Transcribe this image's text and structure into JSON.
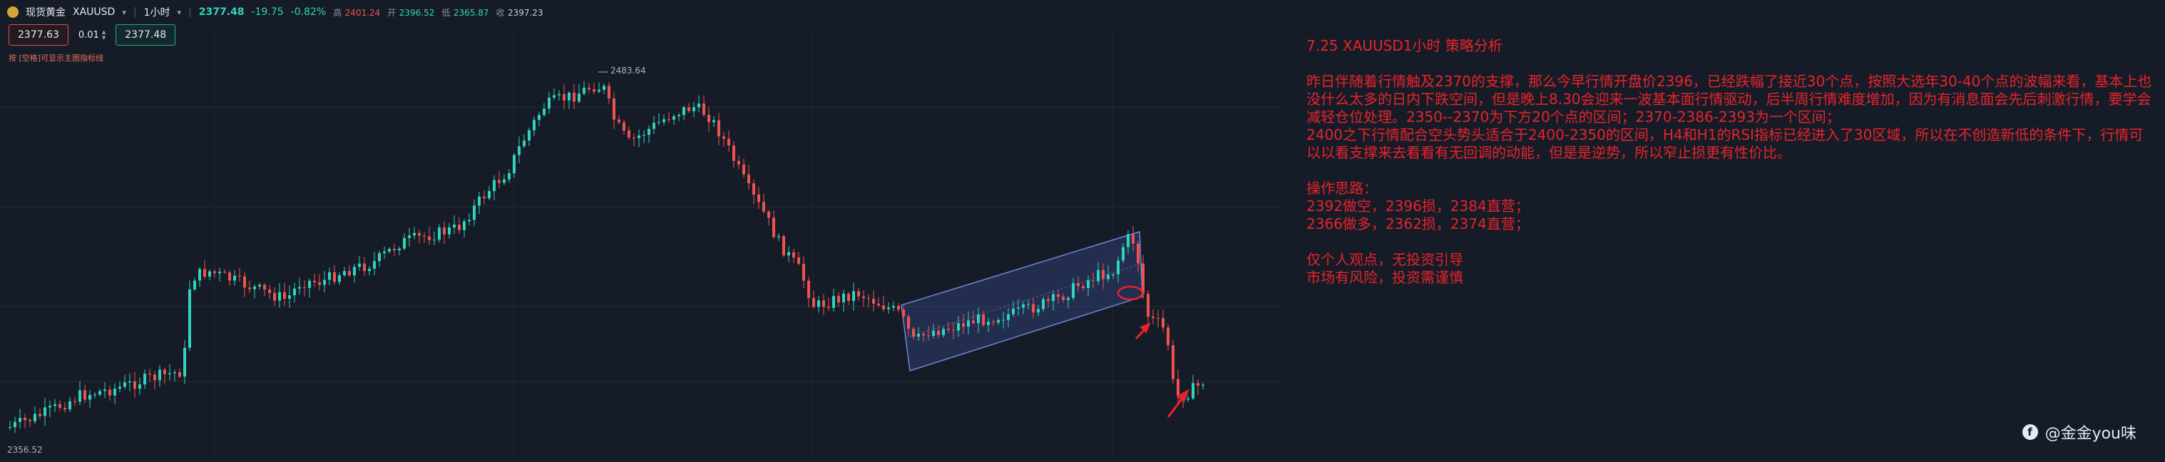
{
  "header": {
    "symbol_name": "现货黄金",
    "symbol_code": "XAUUSD",
    "timeframe": "1小时",
    "last_price": "2377.48",
    "change": "-19.75",
    "change_pct": "-0.82%",
    "high_label": "高",
    "high_value": "2401.24",
    "open_label": "开",
    "open_value": "2396.52",
    "low_label": "低",
    "low_value": "2365.87",
    "close_label": "收",
    "close_value": "2397.23",
    "caret_icon": "chevron-down-icon"
  },
  "trade": {
    "sell_price": "2377.63",
    "quantity": "0.01",
    "buy_price": "2377.48"
  },
  "hint": "按 [空格]可显示主图指标线",
  "chart_labels": {
    "high_marker": "2483.64",
    "low_marker": "2356.52"
  },
  "colors": {
    "up": "#2fd4bd",
    "down": "#ef5350",
    "channel_fill": "#3b4f9a",
    "analysis_text": "#e8232b",
    "background": "#161c27"
  },
  "analysis": {
    "title": "7.25 XAUUSD1小时 策略分析",
    "para1": "昨日伴随着行情触及2370的支撑，那么今早行情开盘价2396，已经跌幅了接近30个点，按照大选年30-40个点的波幅来看，基本上也没什么太多的日内下跌空间，但是晚上8.30会迎来一波基本面行情驱动，后半周行情难度增加，因为有消息面会先后刺激行情，要学会减轻仓位处理。2350--2370为下方20个点的区间；2370-2386-2393为一个区间；",
    "para2": "2400之下行情配合空头势头适合于2400-2350的区间，H4和H1的RSI指标已经进入了30区域，所以在不创造新低的条件下，行情可以以看支撑来去看看有无回调的动能，但是是逆势，所以窄止损更有性价比。",
    "ops_title": "操作思路：",
    "op1": "2392做空，2396损，2384直营；",
    "op2": "2366做多，2362损，2374直营；",
    "disclaimer1": "仅个人观点，无投资引导",
    "disclaimer2": "市场有风险，投资需谨慎"
  },
  "watermark": {
    "icon": "facebook-icon",
    "text": "@金金you味"
  }
}
